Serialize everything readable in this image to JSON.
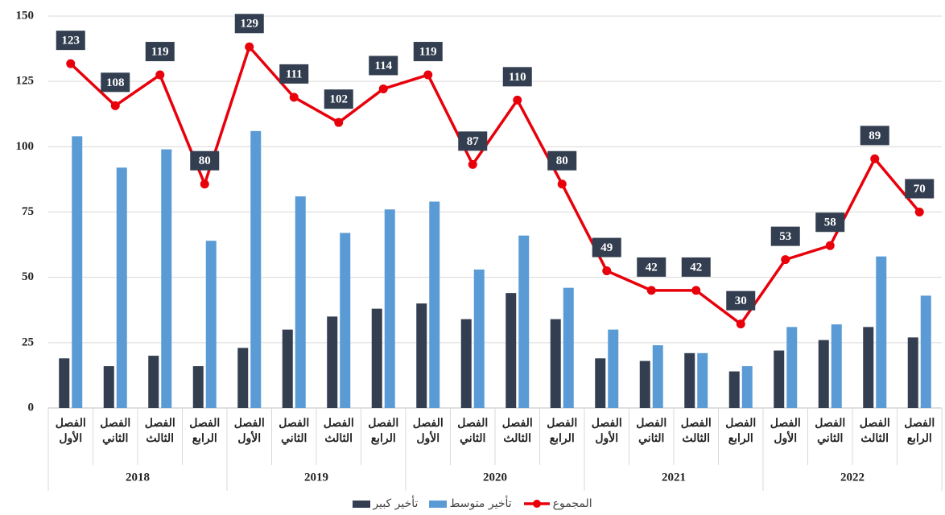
{
  "chart_data": {
    "type": "bar",
    "categories": [
      "الفصل الأول",
      "الفصل الثاني",
      "الفصل الثالث",
      "الفصل الرابع",
      "الفصل الأول",
      "الفصل الثاني",
      "الفصل الثالث",
      "الفصل الرابع",
      "الفصل الأول",
      "الفصل الثاني",
      "الفصل الثالث",
      "الفصل الرابع",
      "الفصل الأول",
      "الفصل الثاني",
      "الفصل الثالث",
      "الفصل الرابع",
      "الفصل الأول",
      "الفصل الثاني",
      "الفصل الثالث",
      "الفصل الرابع"
    ],
    "groups": [
      "2018",
      "2019",
      "2020",
      "2021",
      "2022"
    ],
    "series": [
      {
        "name": "تأخير كبير",
        "type": "bar",
        "color": "#333f50",
        "values": [
          19,
          16,
          20,
          16,
          23,
          30,
          35,
          38,
          40,
          34,
          44,
          34,
          19,
          18,
          21,
          14,
          22,
          26,
          31,
          27
        ]
      },
      {
        "name": "تأخير متوسط",
        "type": "bar",
        "color": "#5b9bd5",
        "values": [
          104,
          92,
          99,
          64,
          106,
          81,
          67,
          76,
          79,
          53,
          66,
          46,
          30,
          24,
          21,
          16,
          31,
          32,
          58,
          43
        ]
      },
      {
        "name": "المجموع",
        "type": "line",
        "axis": "y2",
        "color": "#e8000b",
        "values": [
          123,
          108,
          119,
          80,
          129,
          111,
          102,
          114,
          119,
          87,
          110,
          80,
          49,
          42,
          42,
          30,
          53,
          58,
          89,
          70
        ]
      }
    ],
    "ylim": [
      0,
      150
    ],
    "yticks": [
      0,
      25,
      50,
      75,
      100,
      125,
      150
    ],
    "y2lim": [
      0,
      140
    ],
    "grid": true,
    "legend": "bottom"
  }
}
